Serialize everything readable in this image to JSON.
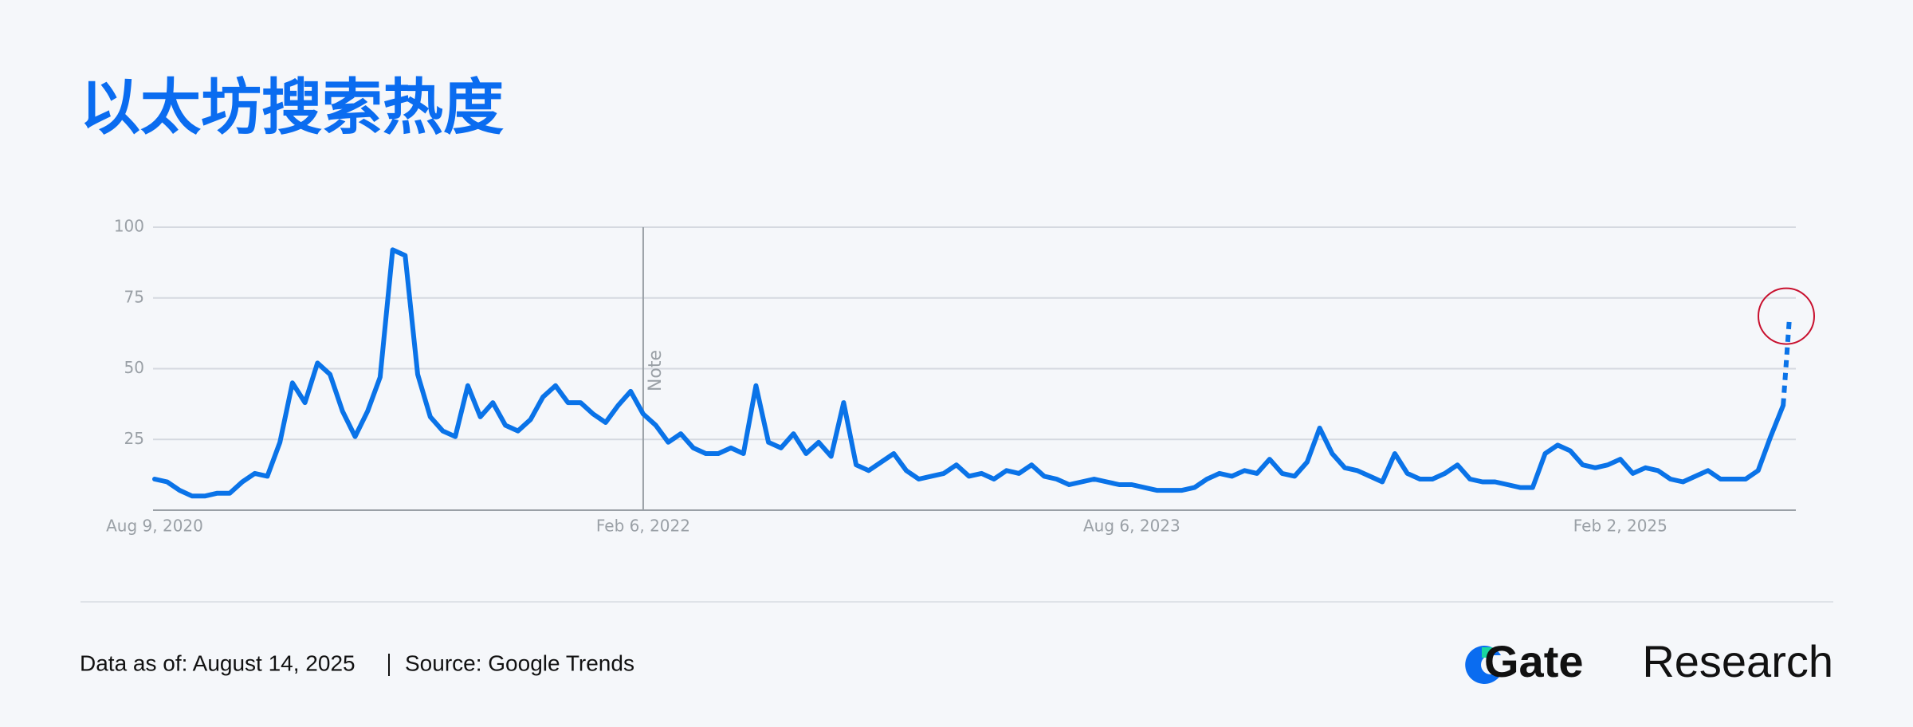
{
  "chart_data": {
    "type": "line",
    "title": "以太坊搜索热度",
    "x": [
      "2020-08-09",
      "2020-08-23",
      "2020-09-06",
      "2020-09-20",
      "2020-10-04",
      "2020-10-18",
      "2020-11-01",
      "2020-11-15",
      "2020-11-29",
      "2020-12-13",
      "2020-12-27",
      "2021-01-10",
      "2021-01-24",
      "2021-02-07",
      "2021-02-21",
      "2021-03-07",
      "2021-03-21",
      "2021-04-04",
      "2021-04-18",
      "2021-05-02",
      "2021-05-16",
      "2021-05-30",
      "2021-06-13",
      "2021-06-27",
      "2021-07-11",
      "2021-07-25",
      "2021-08-08",
      "2021-08-22",
      "2021-09-05",
      "2021-09-19",
      "2021-10-03",
      "2021-10-17",
      "2021-10-31",
      "2021-11-14",
      "2021-11-28",
      "2021-12-12",
      "2021-12-26",
      "2022-01-09",
      "2022-01-23",
      "2022-02-06",
      "2022-02-20",
      "2022-03-06",
      "2022-03-20",
      "2022-04-03",
      "2022-04-17",
      "2022-05-01",
      "2022-05-15",
      "2022-05-29",
      "2022-06-12",
      "2022-06-26",
      "2022-07-10",
      "2022-07-24",
      "2022-08-07",
      "2022-08-21",
      "2022-09-04",
      "2022-09-18",
      "2022-10-02",
      "2022-10-16",
      "2022-10-30",
      "2022-11-13",
      "2022-11-27",
      "2022-12-11",
      "2022-12-25",
      "2023-01-08",
      "2023-01-22",
      "2023-02-05",
      "2023-02-19",
      "2023-03-05",
      "2023-03-19",
      "2023-04-02",
      "2023-04-16",
      "2023-04-30",
      "2023-05-14",
      "2023-05-28",
      "2023-06-11",
      "2023-06-25",
      "2023-07-09",
      "2023-07-23",
      "2023-08-06",
      "2023-08-20",
      "2023-09-03",
      "2023-09-17",
      "2023-10-01",
      "2023-10-15",
      "2023-10-29",
      "2023-11-12",
      "2023-11-26",
      "2023-12-10",
      "2023-12-24",
      "2024-01-07",
      "2024-01-21",
      "2024-02-04",
      "2024-02-18",
      "2024-03-03",
      "2024-03-17",
      "2024-03-31",
      "2024-04-14",
      "2024-04-28",
      "2024-05-12",
      "2024-05-26",
      "2024-06-09",
      "2024-06-23",
      "2024-07-07",
      "2024-07-21",
      "2024-08-04",
      "2024-08-18",
      "2024-09-01",
      "2024-09-15",
      "2024-09-29",
      "2024-10-13",
      "2024-10-27",
      "2024-11-10",
      "2024-11-24",
      "2024-12-08",
      "2024-12-22",
      "2025-01-05",
      "2025-01-19",
      "2025-02-02",
      "2025-02-16",
      "2025-03-02",
      "2025-03-16",
      "2025-03-30",
      "2025-04-13",
      "2025-04-27",
      "2025-05-11",
      "2025-05-25",
      "2025-06-08",
      "2025-06-22",
      "2025-07-06",
      "2025-07-20",
      "2025-08-03",
      "2025-08-10"
    ],
    "series": [
      {
        "color": "#0a73e8",
        "values": [
          11,
          10,
          7,
          5,
          5,
          6,
          6,
          10,
          13,
          12,
          24,
          45,
          38,
          52,
          48,
          35,
          26,
          35,
          47,
          92,
          90,
          48,
          33,
          28,
          26,
          44,
          33,
          38,
          30,
          28,
          32,
          40,
          44,
          38,
          38,
          34,
          31,
          37,
          42,
          34,
          30,
          24,
          27,
          22,
          20,
          20,
          22,
          20,
          44,
          24,
          22,
          27,
          20,
          24,
          19,
          38,
          16,
          14,
          17,
          20,
          14,
          11,
          12,
          13,
          16,
          12,
          13,
          11,
          14,
          13,
          16,
          12,
          11,
          9,
          10,
          11,
          10,
          9,
          9,
          8,
          7,
          7,
          7,
          8,
          11,
          13,
          12,
          14,
          13,
          18,
          13,
          12,
          17,
          29,
          20,
          15,
          14,
          12,
          10,
          20,
          13,
          11,
          11,
          13,
          16,
          11,
          10,
          10,
          9,
          8,
          8,
          20,
          23,
          21,
          16,
          15,
          16,
          18,
          13,
          15,
          14,
          11,
          10,
          12,
          14,
          11,
          11,
          11,
          14,
          26,
          37,
          68
        ]
      }
    ],
    "last_point_partial": true,
    "highlight_last_point": true,
    "xlim": [
      "2020-08-09",
      "2025-08-10"
    ],
    "xticks": [
      {
        "value": "2020-08-09",
        "label": "Aug 9, 2020"
      },
      {
        "value": "2022-02-06",
        "label": "Feb 6, 2022"
      },
      {
        "value": "2023-08-06",
        "label": "Aug 6, 2023"
      },
      {
        "value": "2025-02-02",
        "label": "Feb 2, 2025"
      }
    ],
    "ylim": [
      0,
      100
    ],
    "yticks": [
      25,
      50,
      75,
      100
    ],
    "grid": true,
    "annotations": [
      {
        "x": "2022-02-06",
        "label": "Note"
      }
    ]
  },
  "footer": {
    "data_as_of": "Data as of: August 14, 2025",
    "source": "Source: Google Trends"
  },
  "logo": {
    "brand": "Gate",
    "suffix": "Research"
  }
}
